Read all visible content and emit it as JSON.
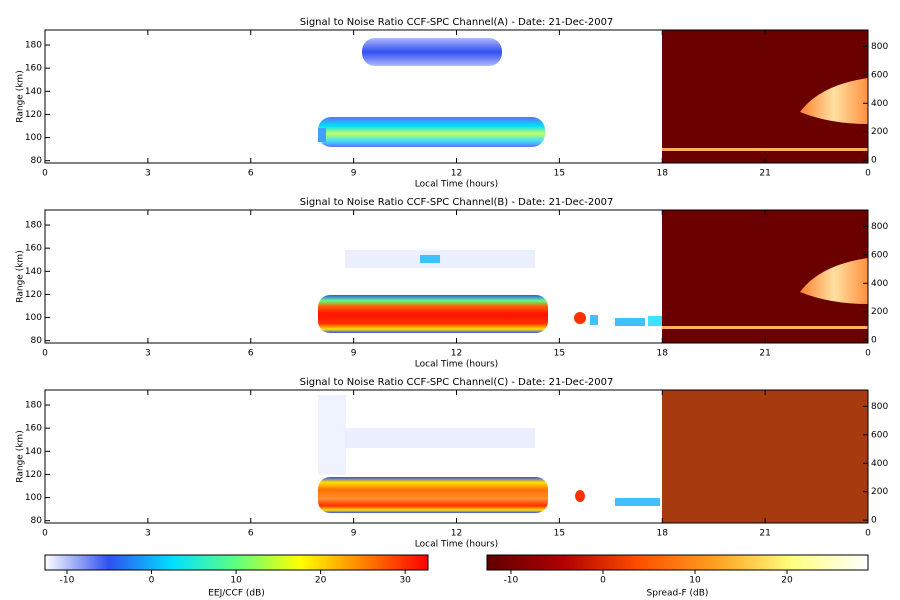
{
  "chart_data": [
    {
      "type": "heatmap",
      "title": "Signal to Noise Ratio CCF-SPC Channel(A) - Date: 21-Dec-2007",
      "xlabel": "Local Time (hours)",
      "ylabel": "Range (km)",
      "xlim": [
        0,
        24
      ],
      "xticks": [
        0,
        3,
        6,
        9,
        12,
        15,
        18,
        21,
        {
          "value": 24,
          "label": "0"
        }
      ],
      "ylim": [
        78,
        193
      ],
      "yticks": [
        80,
        100,
        120,
        140,
        160,
        180
      ],
      "y2lim": [
        -20,
        915
      ],
      "y2ticks": [
        0,
        200,
        400,
        600,
        800
      ]
    },
    {
      "type": "heatmap",
      "title": "Signal to Noise Ratio CCF-SPC Channel(B) - Date: 21-Dec-2007",
      "xlabel": "Local Time (hours)",
      "ylabel": "Range (km)",
      "xlim": [
        0,
        24
      ],
      "xticks": [
        0,
        3,
        6,
        9,
        12,
        15,
        18,
        21,
        {
          "value": 24,
          "label": "0"
        }
      ],
      "ylim": [
        78,
        193
      ],
      "yticks": [
        80,
        100,
        120,
        140,
        160,
        180
      ],
      "y2lim": [
        -20,
        915
      ],
      "y2ticks": [
        0,
        200,
        400,
        600,
        800
      ]
    },
    {
      "type": "heatmap",
      "title": "Signal to Noise Ratio CCF-SPC Channel(C) - Date: 21-Dec-2007",
      "xlabel": "Local Time (hours)",
      "ylabel": "Range (km)",
      "xlim": [
        0,
        24
      ],
      "xticks": [
        0,
        3,
        6,
        9,
        12,
        15,
        18,
        21,
        {
          "value": 24,
          "label": "0"
        }
      ],
      "ylim": [
        78,
        193
      ],
      "yticks": [
        80,
        100,
        120,
        140,
        160,
        180
      ],
      "y2lim": [
        -20,
        915
      ],
      "y2ticks": [
        0,
        200,
        400,
        600,
        800
      ]
    }
  ],
  "colorbars": [
    {
      "label": "EEJ/CCF (dB)",
      "lim": [
        -12.6,
        32.7
      ],
      "ticks": [
        -10,
        0,
        10,
        20,
        30
      ],
      "colors": [
        "#ffffff",
        "#3050f0",
        "#00e0ff",
        "#60ff80",
        "#ffff00",
        "#ff8000",
        "#ff0000"
      ]
    },
    {
      "label": "Spread-F (dB)",
      "lim": [
        -12.6,
        28.8
      ],
      "ticks": [
        -10,
        0,
        10,
        20
      ],
      "colors": [
        "#600000",
        "#b00000",
        "#ff5000",
        "#ffa020",
        "#ffff80",
        "#ffffff"
      ]
    }
  ]
}
